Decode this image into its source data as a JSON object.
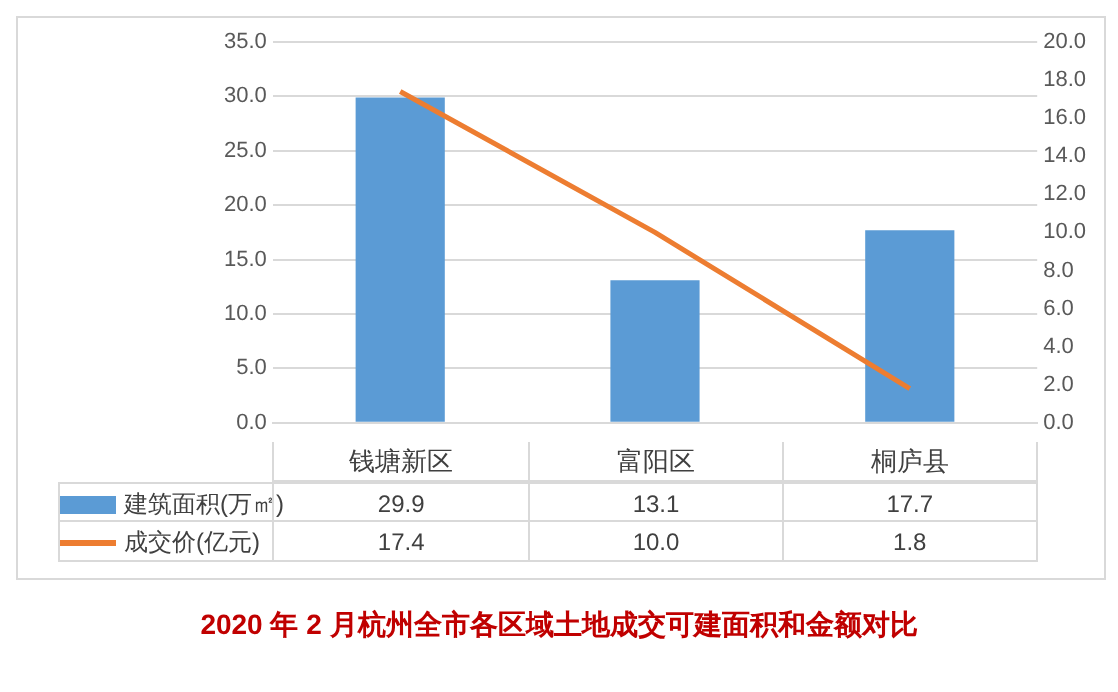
{
  "chart_data": {
    "type": "bar",
    "title": "2020 年 2 月杭州全市各区域土地成交可建面积和金额对比",
    "categories": [
      "钱塘新区",
      "富阳区",
      "桐庐县"
    ],
    "series": [
      {
        "name": "建筑面积(万㎡)",
        "color": "#5b9bd5",
        "values": [
          29.9,
          13.1,
          17.7
        ],
        "value_labels": [
          "29.9",
          "13.1",
          "17.7"
        ]
      },
      {
        "name": "成交价(亿元)",
        "type": "line",
        "axis": "y2",
        "color": "#ed7d31",
        "values": [
          17.4,
          10.0,
          1.8
        ],
        "value_labels": [
          "17.4",
          "10.0",
          "1.8"
        ],
        "marker": "none"
      }
    ],
    "ylim": [
      0,
      35
    ],
    "yticks": [
      {
        "value": 0,
        "label": "0.0"
      },
      {
        "value": 5,
        "label": "5.0"
      },
      {
        "value": 10,
        "label": "10.0"
      },
      {
        "value": 15,
        "label": "15.0"
      },
      {
        "value": 20,
        "label": "20.0"
      },
      {
        "value": 25,
        "label": "25.0"
      },
      {
        "value": 30,
        "label": "30.0"
      },
      {
        "value": 35,
        "label": "35.0"
      }
    ],
    "y2lim": [
      0,
      20
    ],
    "y2ticks": [
      {
        "value": 0,
        "label": "0.0"
      },
      {
        "value": 2,
        "label": "2.0"
      },
      {
        "value": 4,
        "label": "4.0"
      },
      {
        "value": 6,
        "label": "6.0"
      },
      {
        "value": 8,
        "label": "8.0"
      },
      {
        "value": 10,
        "label": "10.0"
      },
      {
        "value": 12,
        "label": "12.0"
      },
      {
        "value": 14,
        "label": "14.0"
      },
      {
        "value": 16,
        "label": "16.0"
      },
      {
        "value": 18,
        "label": "18.0"
      },
      {
        "value": 20,
        "label": "20.0"
      }
    ],
    "grid": "y",
    "legend": "bottom left"
  }
}
